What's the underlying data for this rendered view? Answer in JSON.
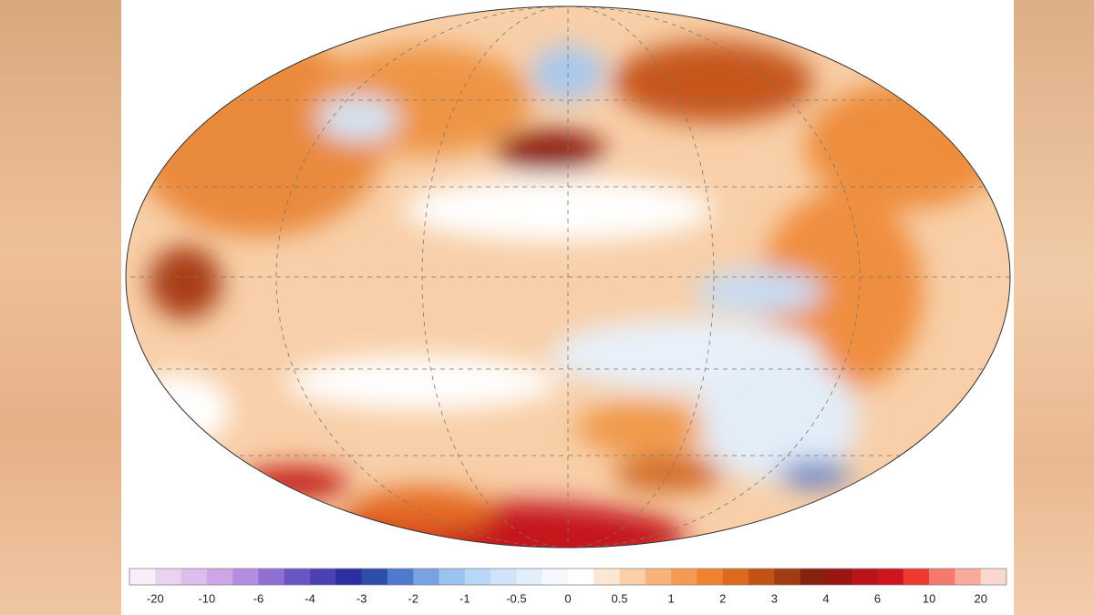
{
  "colorbar": {
    "labels": [
      -20,
      -10,
      -6,
      -4,
      -3,
      -2,
      -1,
      -0.5,
      0,
      0.5,
      1,
      2,
      3,
      4,
      6,
      10,
      20
    ],
    "colors": [
      "#f7eef7",
      "#ead3f0",
      "#ddbdeb",
      "#cca6e6",
      "#b38ede",
      "#8f6fd1",
      "#6a55c4",
      "#4b41b3",
      "#2c2fa0",
      "#2f4ea8",
      "#4f79cc",
      "#78a3e0",
      "#9cc3ef",
      "#b8d6f5",
      "#cfe4f8",
      "#e3eefb",
      "#f5f9fd",
      "#ffffff",
      "#fde6d2",
      "#fbcfa6",
      "#f8b37b",
      "#f49a52",
      "#ee8230",
      "#dd6a1c",
      "#c25216",
      "#a13c12",
      "#86210e",
      "#9a1414",
      "#b8141a",
      "#d0141e",
      "#ef3a33",
      "#f47a6e",
      "#f8aa9c",
      "#fbd8cf"
    ]
  }
}
